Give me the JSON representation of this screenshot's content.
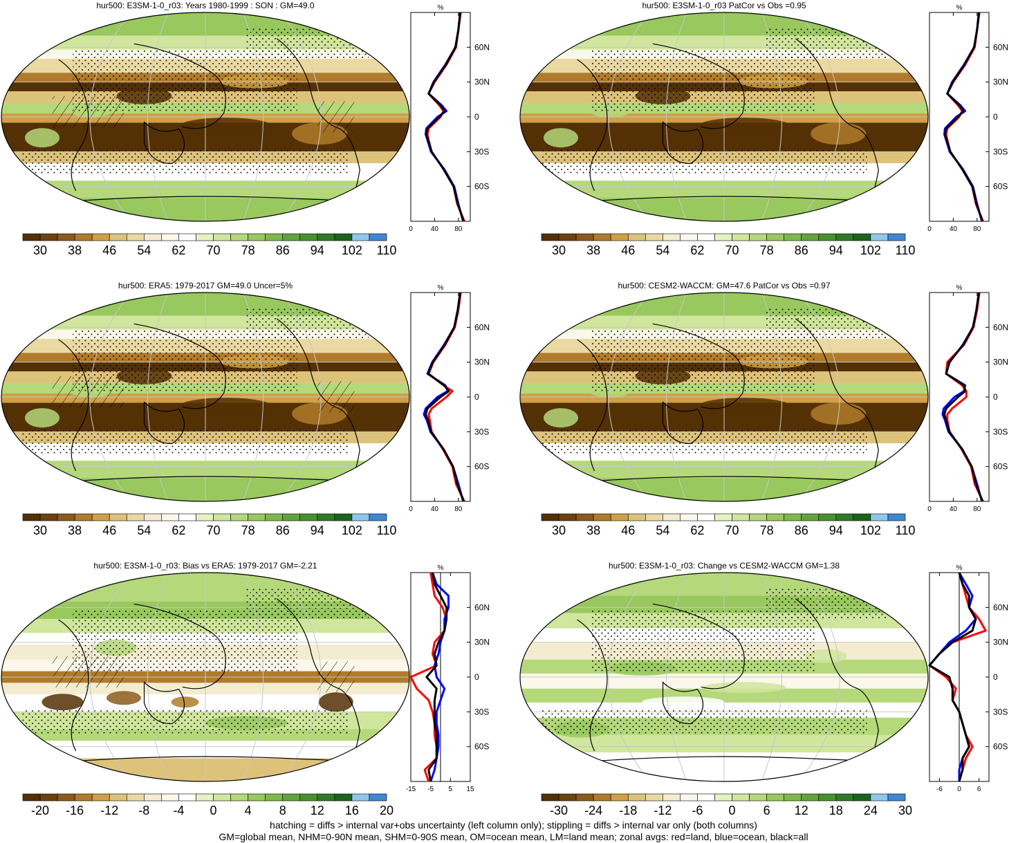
{
  "colors": {
    "palette": [
      "#543005",
      "#6b4210",
      "#8c5a1c",
      "#b07b2c",
      "#cfa048",
      "#ddc27a",
      "#ebd9a3",
      "#f4ecd1",
      "#fbf7ea",
      "#ffffff",
      "#e6f2c4",
      "#cfe69c",
      "#b4d87a",
      "#98c85e",
      "#7db94a",
      "#62a43b",
      "#47912f",
      "#2f7a26",
      "#1d631e",
      "#8ec7ec",
      "#3f87d4"
    ],
    "land": "#ff0000",
    "ocean": "#0000ff",
    "all": "#000000"
  },
  "panels": [
    {
      "title": "hur500: E3SM-1-0_r03: Years 1980-1999 : SON : GM=49.0",
      "type": "clim",
      "hatch": true
    },
    {
      "title": "hur500: E3SM-1-0_r03 PatCor vs Obs =0.95",
      "type": "clim",
      "hatch": false
    },
    {
      "title": "hur500: ERA5: 1979-2017 GM=49.0 Uncer=5%",
      "type": "clim",
      "hatch": true
    },
    {
      "title": "hur500: CESM2-WACCM: GM=47.6 PatCor vs Obs =0.97",
      "type": "clim",
      "hatch": false
    },
    {
      "title": "hur500: E3SM-1-0_r03: Bias vs ERA5: 1979-2017  GM=-2.21",
      "type": "diff",
      "hatch": true
    },
    {
      "title": "hur500: E3SM-1-0_r03: Change vs CESM2-WACCM GM=1.38",
      "type": "diff2",
      "hatch": false
    }
  ],
  "colorbars": {
    "clim": [
      "30",
      "38",
      "46",
      "54",
      "62",
      "70",
      "78",
      "86",
      "94",
      "102",
      "110"
    ],
    "diff": [
      "-20",
      "-16",
      "-12",
      "-8",
      "-4",
      "0",
      "4",
      "8",
      "12",
      "16",
      "20"
    ],
    "diff2": [
      "-30",
      "-24",
      "-18",
      "-12",
      "-6",
      "0",
      "6",
      "12",
      "18",
      "24",
      "30"
    ]
  },
  "zonal_axis": {
    "unit": "%",
    "lat_labels": [
      "60N",
      "30N",
      "0",
      "30S",
      "60S"
    ],
    "x_ticks_clim": [
      "0",
      "40",
      "80"
    ],
    "x_ticks_diff": [
      "-15",
      "-5",
      "5",
      "15"
    ],
    "x_ticks_diff2": [
      "-6",
      "0",
      "6"
    ]
  },
  "chart_data": [
    {
      "type": "line",
      "title": "hur500: E3SM-1-0_r03: Years 1980-1999 : SON : GM=49.0",
      "xlabel": "",
      "ylabel": "",
      "x_range": [
        0,
        100
      ],
      "lat": [
        90,
        75,
        60,
        45,
        30,
        20,
        10,
        5,
        0,
        -10,
        -15,
        -20,
        -30,
        -45,
        -60,
        -75,
        -90
      ],
      "series": [
        {
          "values": [
            84,
            80,
            76,
            60,
            40,
            30,
            48,
            55,
            50,
            30,
            28,
            30,
            35,
            55,
            72,
            78,
            90
          ]
        },
        {
          "values": [
            83,
            80,
            75,
            58,
            38,
            30,
            52,
            60,
            45,
            26,
            25,
            28,
            34,
            56,
            73,
            80,
            88
          ]
        },
        {
          "values": [
            83,
            80,
            75,
            59,
            39,
            30,
            50,
            57,
            48,
            28,
            26,
            29,
            35,
            55,
            72,
            79,
            89
          ]
        }
      ]
    },
    {
      "type": "line",
      "title": "hur500: E3SM-1-0_r03 PatCor vs Obs =0.95",
      "xlabel": "",
      "ylabel": "",
      "x_range": [
        0,
        100
      ],
      "lat": [
        90,
        75,
        60,
        45,
        30,
        20,
        10,
        5,
        0,
        -10,
        -15,
        -20,
        -30,
        -45,
        -60,
        -75,
        -90
      ],
      "series": [
        {
          "values": [
            84,
            80,
            76,
            60,
            40,
            30,
            48,
            55,
            50,
            30,
            28,
            30,
            35,
            55,
            72,
            78,
            90
          ]
        },
        {
          "values": [
            83,
            80,
            75,
            58,
            38,
            30,
            52,
            60,
            45,
            26,
            25,
            28,
            34,
            56,
            73,
            80,
            88
          ]
        },
        {
          "values": [
            83,
            80,
            75,
            59,
            39,
            30,
            50,
            57,
            48,
            28,
            26,
            29,
            35,
            55,
            72,
            79,
            89
          ]
        }
      ]
    },
    {
      "type": "line",
      "title": "hur500: ERA5: 1979-2017 GM=49.0 Uncer=5%",
      "xlabel": "",
      "ylabel": "",
      "x_range": [
        0,
        100
      ],
      "lat": [
        90,
        75,
        60,
        45,
        30,
        20,
        10,
        5,
        0,
        -10,
        -15,
        -20,
        -30,
        -45,
        -60,
        -75,
        -90
      ],
      "series": [
        {
          "values": [
            84,
            80,
            74,
            58,
            38,
            30,
            55,
            70,
            60,
            35,
            30,
            32,
            35,
            54,
            70,
            76,
            90
          ]
        },
        {
          "values": [
            83,
            79,
            73,
            56,
            36,
            28,
            58,
            62,
            45,
            25,
            22,
            27,
            33,
            55,
            71,
            80,
            88
          ]
        },
        {
          "values": [
            83,
            79,
            73,
            57,
            37,
            29,
            56,
            64,
            50,
            28,
            25,
            29,
            34,
            55,
            71,
            78,
            89
          ]
        }
      ]
    },
    {
      "type": "line",
      "title": "hur500: CESM2-WACCM: GM=47.6 PatCor vs Obs =0.97",
      "xlabel": "",
      "ylabel": "",
      "x_range": [
        0,
        100
      ],
      "lat": [
        90,
        75,
        60,
        45,
        30,
        20,
        10,
        5,
        0,
        -10,
        -15,
        -20,
        -30,
        -45,
        -60,
        -75,
        -90
      ],
      "series": [
        {
          "values": [
            84,
            80,
            74,
            58,
            30,
            28,
            55,
            62,
            62,
            38,
            30,
            30,
            34,
            54,
            70,
            76,
            90
          ]
        },
        {
          "values": [
            83,
            79,
            73,
            56,
            34,
            28,
            60,
            58,
            42,
            24,
            22,
            26,
            32,
            55,
            71,
            80,
            88
          ]
        },
        {
          "values": [
            83,
            79,
            73,
            57,
            33,
            28,
            58,
            60,
            48,
            28,
            25,
            28,
            33,
            55,
            71,
            78,
            89
          ]
        }
      ]
    },
    {
      "type": "line",
      "title": "hur500: E3SM-1-0_r03: Bias vs ERA5: 1979-2017  GM=-2.21",
      "xlabel": "",
      "ylabel": "",
      "x_range": [
        -15,
        15
      ],
      "lat": [
        90,
        80,
        70,
        60,
        50,
        40,
        30,
        20,
        10,
        0,
        -10,
        -20,
        -30,
        -40,
        -50,
        -60,
        -70,
        -80,
        -90
      ],
      "series": [
        {
          "values": [
            -5,
            -4,
            -3,
            1,
            3,
            2,
            -3,
            -4,
            -2,
            -15,
            -12,
            -6,
            -4,
            -3,
            -3,
            -2,
            -2,
            -8,
            -6
          ]
        },
        {
          "values": [
            -4,
            -2,
            4,
            4,
            2,
            2,
            0,
            -1,
            -3,
            -2,
            2,
            0,
            -2,
            -2,
            -1,
            -1,
            -2,
            -3,
            -5
          ]
        },
        {
          "values": [
            -4,
            -3,
            0,
            3,
            3,
            2,
            -1,
            -3,
            -2,
            -7,
            -2,
            -3,
            -3,
            -3,
            -2,
            -2,
            -2,
            -6,
            -5
          ]
        }
      ]
    },
    {
      "type": "line",
      "title": "hur500: E3SM-1-0_r03: Change vs CESM2-WACCM GM=1.38",
      "xlabel": "",
      "ylabel": "",
      "x_range": [
        -9,
        9
      ],
      "lat": [
        90,
        80,
        70,
        60,
        50,
        40,
        30,
        20,
        10,
        0,
        -10,
        -20,
        -30,
        -40,
        -50,
        -60,
        -70,
        -80,
        -90
      ],
      "series": [
        {
          "values": [
            0,
            1,
            2,
            3,
            6,
            8,
            -2,
            -6,
            -9,
            -4,
            -1,
            -2,
            0,
            1,
            2,
            4,
            2,
            1,
            0
          ]
        },
        {
          "values": [
            0,
            2,
            4,
            3,
            5,
            2,
            -3,
            -6,
            -9,
            -3,
            -2,
            -2,
            0,
            1,
            2,
            3,
            1,
            0,
            0
          ]
        },
        {
          "values": [
            0,
            1,
            3,
            3,
            5,
            4,
            -2,
            -6,
            -9,
            -3,
            -2,
            -2,
            0,
            1,
            2,
            3,
            1,
            1,
            0
          ]
        }
      ]
    }
  ],
  "footer": {
    "line1": "hatching = diffs > internal var+obs uncertainty (left column only); stippling = diffs > internal var only (both columns)",
    "line2": "GM=global mean, NHM=0-90N mean, SHM=0-90S mean, OM=ocean mean, LM=land mean; zonal avgs: red=land, blue=ocean, black=all"
  }
}
